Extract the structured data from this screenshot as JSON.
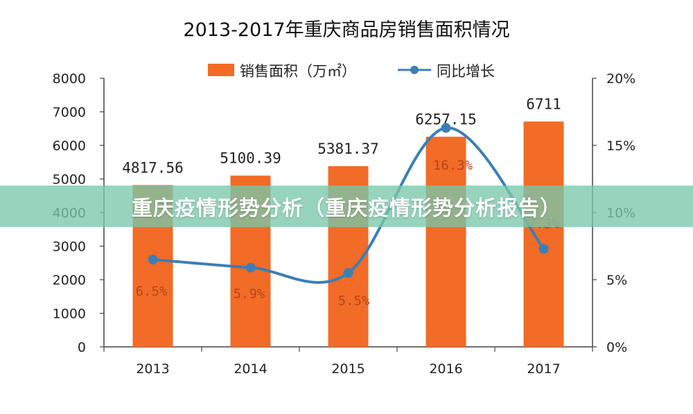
{
  "banner": {
    "text": "重庆疫情形势分析（重庆疫情形势分析报告）"
  },
  "colors": {
    "bar": "#f26b27",
    "line": "#3a7fb8",
    "pct_label": "#b5451b"
  },
  "chart_data": {
    "type": "bar",
    "title": "2013-2017年重庆商品房销售面积情况",
    "categories": [
      "2013",
      "2014",
      "2015",
      "2016",
      "2017"
    ],
    "series": [
      {
        "name": "销售面积（万㎡）",
        "type": "bar",
        "axis": "left",
        "values": [
          4817.56,
          5100.39,
          5381.37,
          6257.15,
          6711
        ],
        "labels": [
          "4817.56",
          "5100.39",
          "5381.37",
          "6257.15",
          "6711"
        ]
      },
      {
        "name": "同比增长",
        "type": "line",
        "axis": "right",
        "values": [
          6.5,
          5.9,
          5.5,
          16.3,
          7.3
        ],
        "labels": [
          "6.5%",
          "5.9%",
          "5.5%",
          "16.3%",
          "7.3%"
        ]
      }
    ],
    "y_left": {
      "min": 0,
      "max": 8000,
      "ticks": [
        "0",
        "1000",
        "2000",
        "3000",
        "4000",
        "5000",
        "6000",
        "7000",
        "8000"
      ]
    },
    "y_right": {
      "min": 0,
      "max": 20,
      "ticks": [
        "0%",
        "5%",
        "10%",
        "15%",
        "20%"
      ]
    },
    "legend": "top",
    "grid": false
  }
}
